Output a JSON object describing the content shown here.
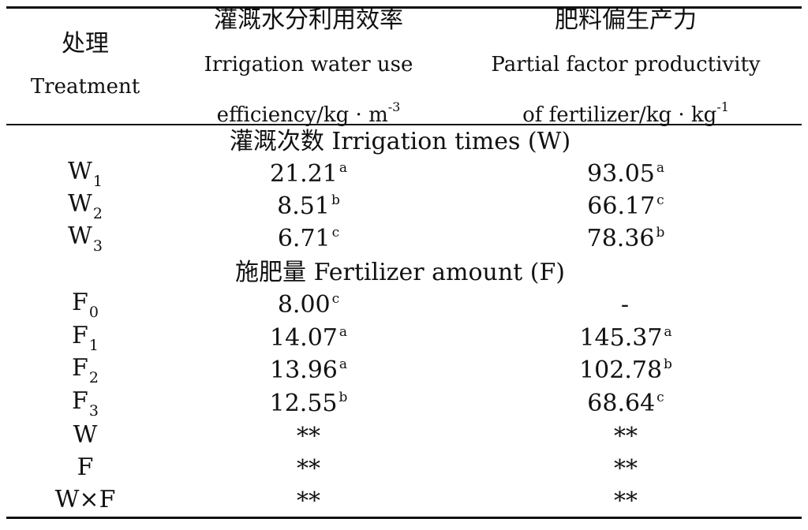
{
  "header": {
    "treatment_zh": "处理",
    "treatment_en": "Treatment",
    "iwue_zh": "灌溉水分利用效率",
    "iwue_en_line1": "Irrigation water use",
    "iwue_en_line2": "efficiency/kg · m",
    "iwue_unit_exp": "-3",
    "pfp_zh": "肥料偏生产力",
    "pfp_en_line1": "Partial factor productivity",
    "pfp_en_line2": "of fertilizer/kg · kg",
    "pfp_unit_exp": "-1"
  },
  "sections": [
    {
      "title": "灌溉次数 Irrigation times (W)",
      "rows": [
        {
          "base": "W",
          "sub": "1",
          "iwue": "21.21",
          "iwue_sup": "a",
          "pfp": "93.05",
          "pfp_sup": "a"
        },
        {
          "base": "W",
          "sub": "2",
          "iwue": "8.51",
          "iwue_sup": "b",
          "pfp": "66.17",
          "pfp_sup": "c"
        },
        {
          "base": "W",
          "sub": "3",
          "iwue": "6.71",
          "iwue_sup": "c",
          "pfp": "78.36",
          "pfp_sup": "b"
        }
      ]
    },
    {
      "title": "施肥量 Fertilizer amount (F)",
      "rows": [
        {
          "base": "F",
          "sub": "0",
          "iwue": "8.00",
          "iwue_sup": "c",
          "pfp": "-",
          "pfp_sup": ""
        },
        {
          "base": "F",
          "sub": "1",
          "iwue": "14.07",
          "iwue_sup": "a",
          "pfp": "145.37",
          "pfp_sup": "a"
        },
        {
          "base": "F",
          "sub": "2",
          "iwue": "13.96",
          "iwue_sup": "a",
          "pfp": "102.78",
          "pfp_sup": "b"
        },
        {
          "base": "F",
          "sub": "3",
          "iwue": "12.55",
          "iwue_sup": "b",
          "pfp": "68.64",
          "pfp_sup": "c"
        }
      ]
    }
  ],
  "significance_rows": [
    {
      "label": "W",
      "iwue": "**",
      "pfp": "**"
    },
    {
      "label": "F",
      "iwue": "**",
      "pfp": "**"
    },
    {
      "label": "W×F",
      "iwue": "**",
      "pfp": "**"
    }
  ]
}
